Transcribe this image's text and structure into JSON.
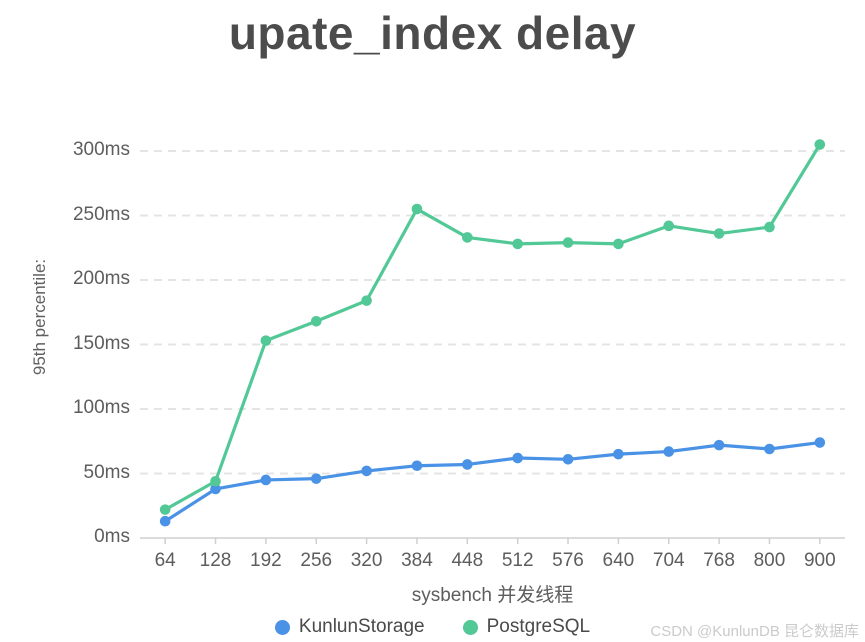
{
  "watermark": "CSDN @KunlunDB 昆仑数据库",
  "chart_data": {
    "type": "line",
    "title": "upate_index delay",
    "xlabel": "sysbench 并发线程",
    "ylabel": "95th percentile:",
    "categories": [
      "64",
      "128",
      "192",
      "256",
      "320",
      "384",
      "448",
      "512",
      "576",
      "640",
      "704",
      "768",
      "800",
      "900"
    ],
    "series": [
      {
        "name": "KunlunStorage",
        "color": "#4a92e5",
        "values": [
          13,
          38,
          45,
          46,
          52,
          56,
          57,
          62,
          61,
          65,
          67,
          72,
          69,
          74
        ]
      },
      {
        "name": "PostgreSQL",
        "color": "#52c896",
        "values": [
          22,
          44,
          153,
          168,
          184,
          255,
          233,
          228,
          229,
          228,
          242,
          236,
          241,
          305
        ]
      }
    ],
    "ylim": [
      0,
      300
    ],
    "ytick_step": 50,
    "ytick_labels": [
      "0ms",
      "50ms",
      "100ms",
      "150ms",
      "200ms",
      "250ms",
      "300ms"
    ],
    "grid": "horizontal-dashed",
    "legend_position": "bottom"
  }
}
